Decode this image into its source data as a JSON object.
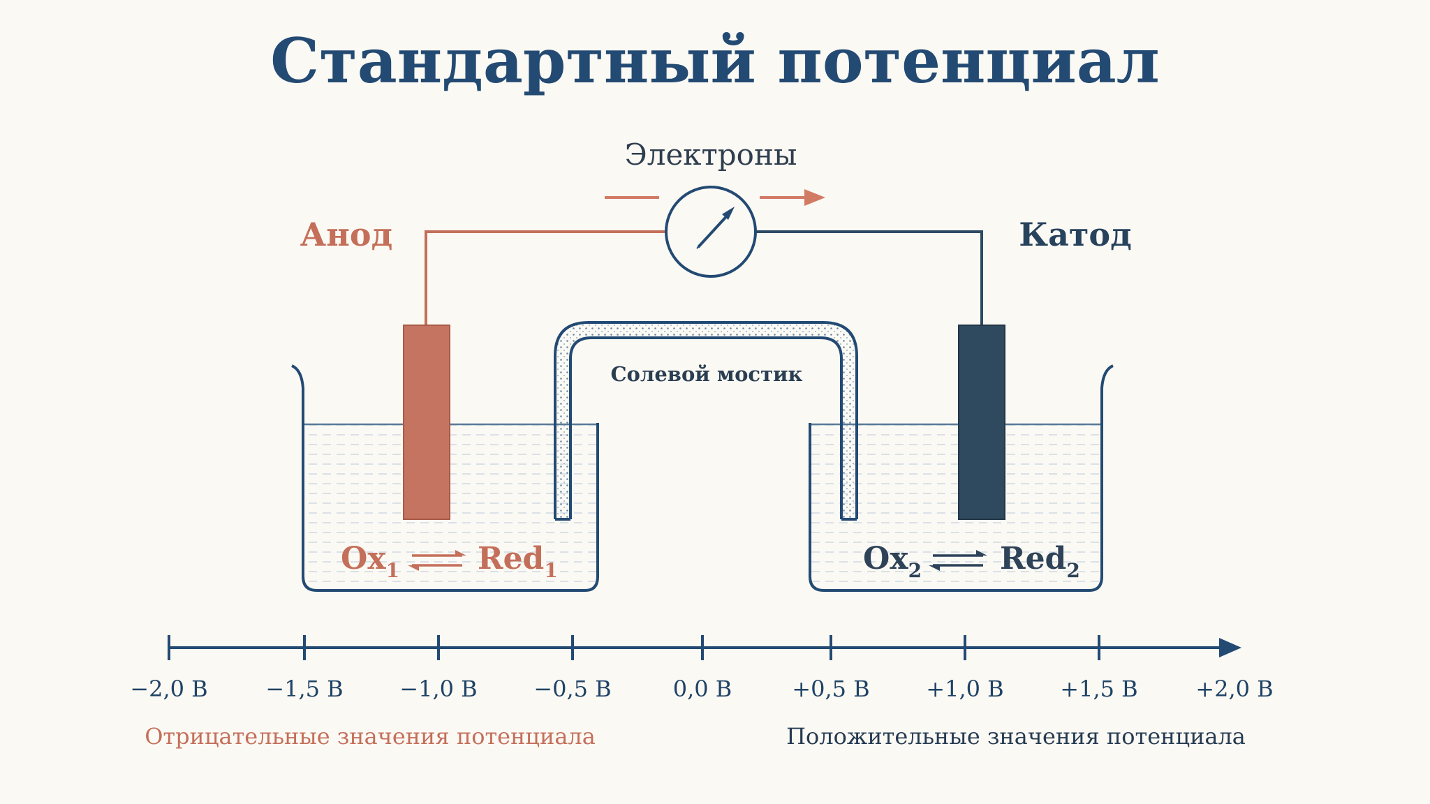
{
  "title": "Стандартный потенциал",
  "cell": {
    "anode_label": "Анод",
    "cathode_label": "Катод",
    "electrons_label": "Электроны",
    "salt_bridge_label": "Солевой мостик",
    "left_equation": {
      "ox": "Ox",
      "ox_sub": "1",
      "red": "Red",
      "red_sub": "1"
    },
    "right_equation": {
      "ox": "Ox",
      "ox_sub": "2",
      "red": "Red",
      "red_sub": "2"
    }
  },
  "scale": {
    "tick_labels": [
      "−2,0 В",
      "−1,5 В",
      "−1,0 В",
      "−0,5 В",
      "0,0 В",
      "+0,5 В",
      "+1,0 В",
      "+1,5 В",
      "+2,0 В"
    ],
    "negative_caption": "Отрицательные значения потенциала",
    "positive_caption": "Положительные значения потенциала"
  },
  "colors": {
    "navy": "#234a73",
    "anode": "#c46f5a",
    "cathode": "#2f4a5e",
    "background": "#fbf9f4"
  },
  "icons": {
    "meter": "galvanometer-icon",
    "arrow": "equilibrium-arrows-icon"
  }
}
